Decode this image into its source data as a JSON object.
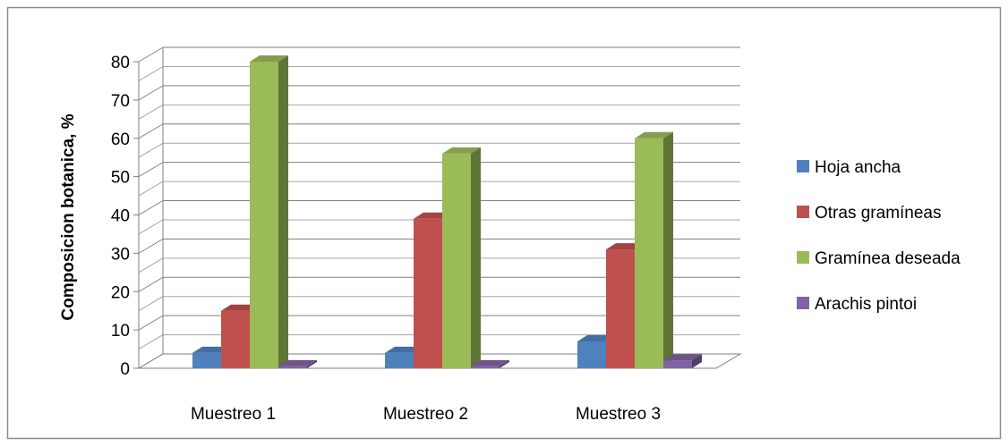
{
  "chart_data": {
    "type": "bar",
    "style": "3d-clustered-column",
    "title": "",
    "xlabel": "",
    "ylabel": "Composicion botanica, %",
    "ylim": [
      0,
      80
    ],
    "yticks": [
      0,
      10,
      20,
      30,
      40,
      50,
      60,
      70,
      80
    ],
    "grid": true,
    "legend_position": "right",
    "categories": [
      "Muestreo 1",
      "Muestreo 2",
      "Muestreo 3"
    ],
    "series": [
      {
        "name": "Hoja ancha",
        "color": "#4f81bd",
        "values": [
          4,
          4,
          7
        ]
      },
      {
        "name": "Otras gramíneas",
        "color": "#c0504d",
        "values": [
          15,
          39,
          31
        ]
      },
      {
        "name": "Gramínea deseada",
        "color": "#9bbb59",
        "values": [
          80,
          56,
          60
        ]
      },
      {
        "name": "Arachis pintoi",
        "color": "#8064a2",
        "values": [
          0.5,
          0.5,
          2
        ]
      }
    ]
  }
}
